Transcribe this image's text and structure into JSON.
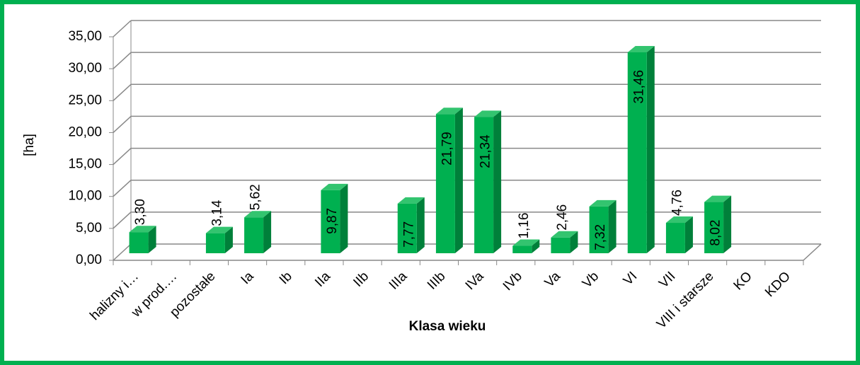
{
  "chart_data": {
    "type": "bar3d",
    "y_label": "[ha]",
    "x_label": "Klasa wieku",
    "categories": [
      "halizny i…",
      "w prod.…",
      "pozostałe",
      "Ia",
      "Ib",
      "IIa",
      "IIb",
      "IIIa",
      "IIIb",
      "IVa",
      "IVb",
      "Va",
      "Vb",
      "VI",
      "VII",
      "VIII i starsze",
      "KO",
      "KDO"
    ],
    "values": [
      3.3,
      null,
      3.14,
      5.62,
      null,
      9.87,
      null,
      7.77,
      21.79,
      21.34,
      1.16,
      2.46,
      7.32,
      31.46,
      4.76,
      8.02,
      null,
      null
    ],
    "value_labels": [
      "3,30",
      null,
      "3,14",
      "5,62",
      null,
      "9,87",
      null,
      "7,77",
      "21,79",
      "21,34",
      "1,16",
      "2,46",
      "7,32",
      "31,46",
      "4,76",
      "8,02",
      null,
      null
    ],
    "color": "#00b050",
    "ylim": [
      0,
      35
    ],
    "yticks": [
      {
        "value": 0,
        "label": "0,00"
      },
      {
        "value": 5,
        "label": "5,00"
      },
      {
        "value": 10,
        "label": "10,00"
      },
      {
        "value": 15,
        "label": "15,00"
      },
      {
        "value": 20,
        "label": "20,00"
      },
      {
        "value": 25,
        "label": "25,00"
      },
      {
        "value": 30,
        "label": "30,00"
      },
      {
        "value": 35,
        "label": "35,00"
      }
    ],
    "grid": true
  }
}
